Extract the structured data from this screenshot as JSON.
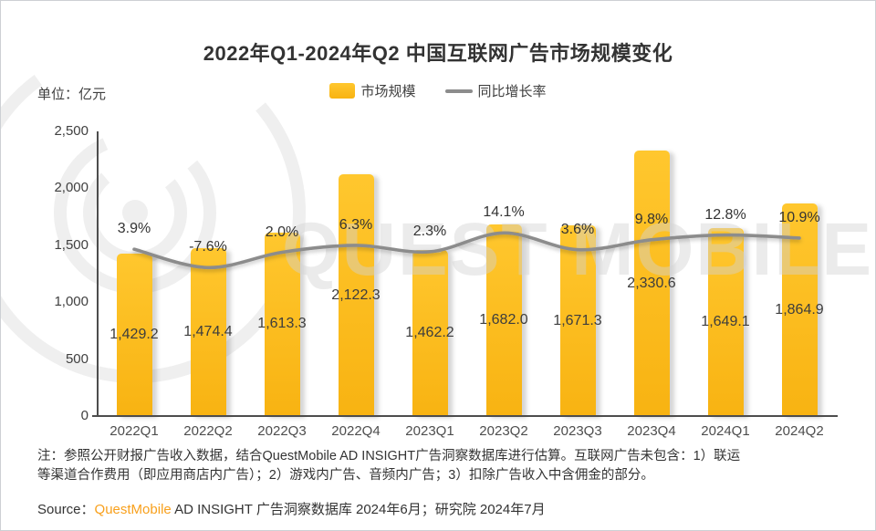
{
  "title": "2022年Q1-2024年Q2 中国互联网广告市场规模变化",
  "unit_label": "单位：亿元",
  "legend": {
    "bar_label": "市场规模",
    "line_label": "同比增长率"
  },
  "watermark": {
    "text": "QUEST MOBILE"
  },
  "chart_data": {
    "type": "bar+line",
    "title": "2022年Q1-2024年Q2 中国互联网广告市场规模变化",
    "unit": "亿元",
    "categories": [
      "2022Q1",
      "2022Q2",
      "2022Q3",
      "2022Q4",
      "2023Q1",
      "2023Q2",
      "2023Q3",
      "2023Q4",
      "2024Q1",
      "2024Q2"
    ],
    "series": [
      {
        "name": "市场规模",
        "type": "bar",
        "values": [
          1429.2,
          1474.4,
          1613.3,
          2122.3,
          1462.2,
          1682.0,
          1671.3,
          2330.6,
          1649.1,
          1864.9
        ],
        "labels": [
          "1,429.2",
          "1,474.4",
          "1,613.3",
          "2,122.3",
          "1,462.2",
          "1,682.0",
          "1,671.3",
          "2,330.6",
          "1,649.1",
          "1,864.9"
        ]
      },
      {
        "name": "同比增长率",
        "type": "line",
        "values": [
          3.9,
          -7.6,
          2.0,
          6.3,
          2.3,
          14.1,
          3.6,
          9.8,
          12.8,
          10.9
        ],
        "labels": [
          "3.9%",
          "-7.6%",
          "2.0%",
          "6.3%",
          "2.3%",
          "14.1%",
          "3.6%",
          "9.8%",
          "12.8%",
          "10.9%"
        ]
      }
    ],
    "ylim": [
      0,
      2500
    ],
    "yticks": [
      "2,500",
      "2,000",
      "1,500",
      "1,000",
      "500",
      "0"
    ],
    "grid": false,
    "legend_position": "top-center"
  },
  "note": {
    "line1": "注：参照公开财报广告收入数据，结合QuestMobile AD INSIGHT广告洞察数据库进行估算。互联网广告未包含：1）联运",
    "line2": "等渠道合作费用（即应用商店内广告）；2）游戏内广告、音频内广告；3）扣除广告收入中含佣金的部分。"
  },
  "source": {
    "prefix": "Source：",
    "brand": "QuestMobile",
    "rest": " AD INSIGHT 广告洞察数据库 2024年6月；研究院 2024年7月"
  },
  "colors": {
    "bar_top": "#FFC72E",
    "bar_bottom": "#F8B312",
    "line": "#8C8C8C",
    "axis": "#4d4d4d",
    "brand_orange": "#F8A01C",
    "watermark": "#efefef"
  }
}
